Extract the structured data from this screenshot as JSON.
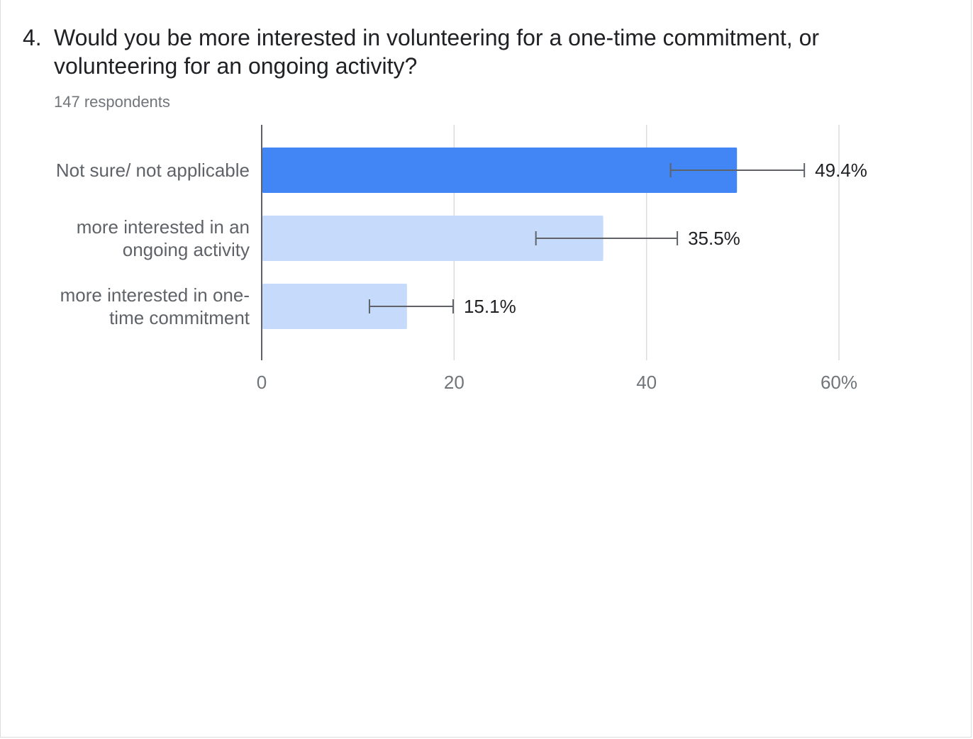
{
  "question": {
    "number": "4.",
    "title": "Would you be more interested in volunteering for a one-time commitment, or volunteering for an ongoing activity?",
    "respondents": "147 respondents"
  },
  "colors": {
    "highlight": "#4285f4",
    "bar": "#c6dafc",
    "grid": "#dadce0",
    "axis": "#5f6368",
    "error_bar": "#5f6368"
  },
  "chart_data": {
    "type": "bar",
    "orientation": "horizontal",
    "categories": [
      [
        "Not sure/ not applicable"
      ],
      [
        "more interested in an",
        "ongoing activity"
      ],
      [
        "more interested in one-",
        "time commitment"
      ]
    ],
    "values": [
      49.4,
      35.5,
      15.1
    ],
    "value_labels": [
      "49.4%",
      "35.5%",
      "15.1%"
    ],
    "error_bars": [
      [
        42.5,
        56.4
      ],
      [
        28.5,
        43.2
      ],
      [
        11.2,
        19.9
      ]
    ],
    "highlight_index": 0,
    "xlim": [
      0,
      60
    ],
    "xticks": [
      0,
      20,
      40,
      60
    ],
    "xtick_labels": [
      "0",
      "20",
      "40",
      "60%"
    ],
    "grid": true,
    "legend": "none"
  }
}
